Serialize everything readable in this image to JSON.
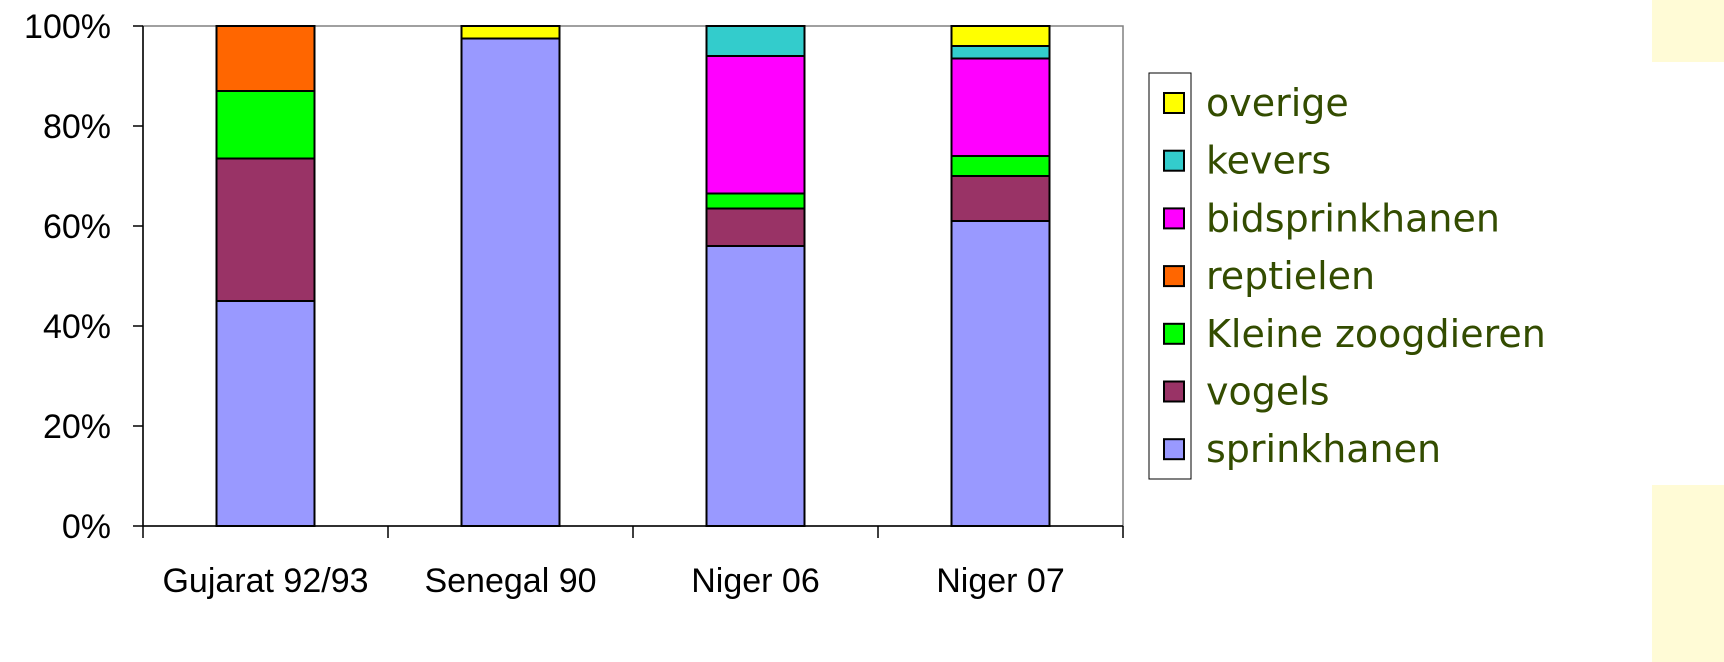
{
  "chart_data": {
    "type": "bar",
    "stacked": true,
    "percent": true,
    "categories": [
      "Gujarat 92/93",
      "Senegal 90",
      "Niger 06",
      "Niger 07"
    ],
    "ylim": [
      0,
      100
    ],
    "yticks": [
      0,
      20,
      40,
      60,
      80,
      100
    ],
    "ytick_labels": [
      "0%",
      "20%",
      "40%",
      "60%",
      "80%",
      "100%"
    ],
    "grid": false,
    "legend_position": "right",
    "series": [
      {
        "name": "sprinkhanen",
        "color": "#9999ff",
        "values": [
          45,
          97.5,
          56,
          61
        ]
      },
      {
        "name": "vogels",
        "color": "#993366",
        "values": [
          28.5,
          0,
          7.5,
          9
        ]
      },
      {
        "name": "Kleine zoogdieren",
        "color": "#00ff00",
        "values": [
          13.5,
          0,
          3,
          4
        ]
      },
      {
        "name": "reptielen",
        "color": "#ff6600",
        "values": [
          13,
          0,
          0,
          0
        ]
      },
      {
        "name": "bidsprinkhanen",
        "color": "#ff00ff",
        "values": [
          0,
          0,
          27.5,
          19.5
        ]
      },
      {
        "name": "kevers",
        "color": "#33cccc",
        "values": [
          0,
          0,
          6,
          2.5
        ]
      },
      {
        "name": "overige",
        "color": "#ffff00",
        "values": [
          0,
          2.5,
          0,
          4
        ]
      }
    ]
  }
}
